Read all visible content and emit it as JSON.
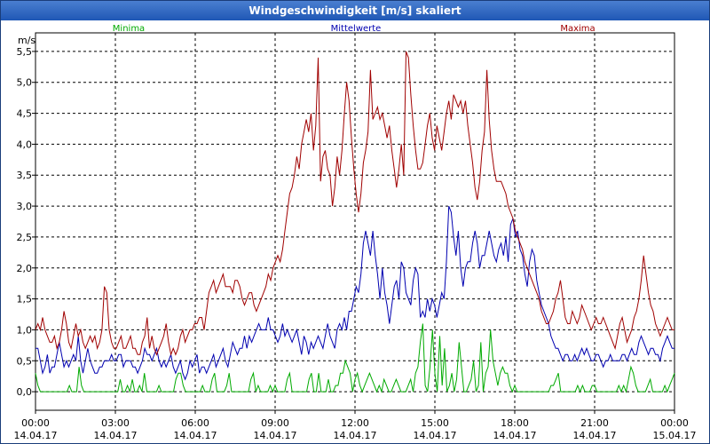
{
  "window": {
    "title": "Windgeschwindigkeit [m/s] skaliert"
  },
  "colors": {
    "min": "#00aa00",
    "mean": "#0000b0",
    "max": "#a00000",
    "grid": "#000000",
    "title_bg": "#2b63c0"
  },
  "chart_data": {
    "type": "line",
    "title": "Windgeschwindigkeit [m/s] skaliert",
    "ylabel": "m/s",
    "xlabel": "",
    "ylim": [
      -0.3,
      5.8
    ],
    "yticks": [
      0.0,
      0.5,
      1.0,
      1.5,
      2.0,
      2.5,
      3.0,
      3.5,
      4.0,
      4.5,
      5.0,
      5.5
    ],
    "ytick_labels": [
      "0,0",
      "0,5",
      "1,0",
      "1,5",
      "2,0",
      "2,5",
      "3,0",
      "3,5",
      "4,0",
      "4,5",
      "5,0",
      "5,5"
    ],
    "xlim_hours": [
      0,
      24
    ],
    "xticks": [
      {
        "time": "00:00",
        "date": "14.04.17"
      },
      {
        "time": "03:00",
        "date": "14.04.17"
      },
      {
        "time": "06:00",
        "date": "14.04.17"
      },
      {
        "time": "09:00",
        "date": "14.04.17"
      },
      {
        "time": "12:00",
        "date": "14.04.17"
      },
      {
        "time": "15:00",
        "date": "14.04.17"
      },
      {
        "time": "18:00",
        "date": "14.04.17"
      },
      {
        "time": "21:00",
        "date": "14.04.17"
      },
      {
        "time": "00:00",
        "date": "15.04.17"
      }
    ],
    "grid": true,
    "series": [
      {
        "name": "Minima",
        "color": "#00aa00",
        "values": [
          0.3,
          0.1,
          0,
          0,
          0,
          0,
          0,
          0,
          0,
          0,
          0,
          0,
          0,
          0,
          0.1,
          0,
          0,
          0,
          0.4,
          0.1,
          0,
          0,
          0,
          0,
          0,
          0,
          0,
          0,
          0,
          0,
          0,
          0,
          0,
          0,
          0,
          0.2,
          0,
          0,
          0.1,
          0,
          0.2,
          0,
          0,
          0.1,
          0,
          0.3,
          0,
          0,
          0,
          0,
          0,
          0.1,
          0,
          0,
          0,
          0,
          0,
          0,
          0.2,
          0.3,
          0.3,
          0.1,
          0,
          0,
          0,
          0,
          0,
          0,
          0,
          0.1,
          0,
          0,
          0,
          0.2,
          0.3,
          0,
          0,
          0,
          0,
          0.1,
          0.3,
          0,
          0,
          0,
          0,
          0,
          0,
          0,
          0,
          0.2,
          0.3,
          0,
          0.1,
          0,
          0,
          0,
          0,
          0.1,
          0,
          0.1,
          0,
          0,
          0,
          0,
          0.2,
          0.3,
          0,
          0,
          0,
          0,
          0,
          0,
          0,
          0.2,
          0.3,
          0,
          0,
          0.3,
          0,
          0,
          0,
          0.2,
          0,
          0,
          0.1,
          0.1,
          0.3,
          0.3,
          0.5,
          0.4,
          0.3,
          0,
          0.2,
          0.3,
          0.1,
          0,
          0.1,
          0.2,
          0.3,
          0.2,
          0.1,
          0,
          0.1,
          0,
          0.2,
          0.1,
          0,
          0,
          0.1,
          0.2,
          0.1,
          0,
          0,
          0,
          0.1,
          0.2,
          0,
          0.3,
          0.4,
          0.8,
          1.1,
          0.1,
          0,
          0.4,
          1.0,
          0.3,
          0,
          0.9,
          0.1,
          0.7,
          0,
          0.1,
          0.3,
          0,
          0.2,
          0.8,
          0.4,
          0,
          0,
          0.1,
          0.2,
          0.5,
          0,
          0.1,
          0.8,
          0,
          0.3,
          0.4,
          1.0,
          0.5,
          0.3,
          0.1,
          0.3,
          0.4,
          0.3,
          0.3,
          0.1,
          0,
          0.1,
          0,
          0,
          0,
          0,
          0,
          0,
          0,
          0,
          0,
          0,
          0,
          0,
          0,
          0,
          0.1,
          0.1,
          0.2,
          0.3,
          0,
          0,
          0,
          0,
          0,
          0,
          0,
          0.1,
          0,
          0.1,
          0,
          0,
          0,
          0.1,
          0.1,
          0,
          0,
          0,
          0,
          0,
          0,
          0,
          0,
          0,
          0.1,
          0,
          0.1,
          0,
          0.2,
          0.4,
          0.3,
          0.1,
          0,
          0,
          0,
          0,
          0.1,
          0.2,
          0,
          0,
          0,
          0,
          0,
          0.1,
          0,
          0.1,
          0.2,
          0.3
        ]
      },
      {
        "name": "Mittelwerte",
        "color": "#0000b0",
        "values": [
          0.7,
          0.7,
          0.5,
          0.3,
          0.4,
          0.6,
          0.3,
          0.4,
          0.4,
          0.6,
          0.8,
          0.6,
          0.4,
          0.5,
          0.4,
          0.5,
          0.6,
          0.5,
          0.9,
          0.5,
          0.3,
          0.5,
          0.7,
          0.5,
          0.4,
          0.3,
          0.3,
          0.4,
          0.4,
          0.5,
          0.5,
          0.5,
          0.6,
          0.5,
          0.5,
          0.6,
          0.6,
          0.4,
          0.5,
          0.5,
          0.5,
          0.4,
          0.4,
          0.3,
          0.4,
          0.5,
          0.7,
          0.6,
          0.6,
          0.5,
          0.6,
          0.7,
          0.5,
          0.4,
          0.5,
          0.4,
          0.5,
          0.6,
          0.4,
          0.3,
          0.4,
          0.5,
          0.3,
          0.2,
          0.3,
          0.5,
          0.4,
          0.5,
          0.6,
          0.3,
          0.4,
          0.4,
          0.3,
          0.4,
          0.5,
          0.6,
          0.4,
          0.5,
          0.6,
          0.7,
          0.5,
          0.4,
          0.6,
          0.8,
          0.7,
          0.6,
          0.7,
          0.7,
          0.9,
          0.7,
          0.9,
          0.8,
          0.9,
          1.0,
          1.1,
          1.0,
          1.0,
          1.0,
          1.2,
          1.0,
          1.0,
          0.9,
          0.8,
          0.9,
          1.1,
          0.9,
          1.0,
          0.9,
          0.8,
          0.9,
          1.0,
          0.8,
          0.6,
          0.9,
          0.8,
          0.6,
          0.8,
          0.7,
          0.8,
          0.9,
          0.8,
          0.7,
          0.9,
          1.1,
          0.9,
          0.8,
          0.7,
          1.0,
          1.1,
          1.0,
          1.2,
          1.0,
          1.3,
          1.3,
          1.5,
          1.7,
          1.6,
          1.9,
          2.4,
          2.6,
          2.4,
          2.2,
          2.6,
          2.2,
          1.9,
          1.5,
          2.0,
          1.6,
          1.4,
          1.1,
          1.4,
          1.7,
          1.8,
          1.5,
          2.1,
          2.0,
          1.6,
          1.5,
          1.4,
          1.8,
          2.0,
          1.9,
          1.2,
          1.3,
          1.2,
          1.5,
          1.3,
          1.5,
          1.4,
          1.2,
          1.4,
          1.6,
          1.5,
          2.1,
          3.0,
          2.9,
          2.5,
          2.2,
          2.6,
          2.0,
          1.7,
          2.0,
          2.1,
          2.1,
          2.4,
          2.6,
          2.4,
          2.0,
          2.2,
          2.2,
          2.4,
          2.6,
          2.4,
          2.2,
          2.1,
          2.3,
          2.4,
          2.2,
          2.5,
          2.1,
          2.7,
          2.8,
          2.5,
          2.6,
          2.3,
          2.2,
          1.9,
          1.7,
          2.1,
          2.3,
          2.2,
          1.8,
          1.6,
          1.4,
          1.3,
          1.2,
          1.1,
          0.9,
          0.8,
          0.7,
          0.7,
          0.6,
          0.5,
          0.6,
          0.6,
          0.5,
          0.5,
          0.6,
          0.5,
          0.6,
          0.7,
          0.6,
          0.7,
          0.6,
          0.5,
          0.5,
          0.6,
          0.6,
          0.5,
          0.4,
          0.5,
          0.5,
          0.6,
          0.5,
          0.5,
          0.5,
          0.5,
          0.6,
          0.6,
          0.5,
          0.6,
          0.7,
          0.6,
          0.6,
          0.8,
          0.9,
          0.8,
          0.7,
          0.6,
          0.7,
          0.7,
          0.6,
          0.6,
          0.5,
          0.7,
          0.8,
          0.9,
          0.8,
          0.7,
          0.7
        ]
      },
      {
        "name": "Maxima",
        "color": "#a00000",
        "values": [
          1.0,
          1.1,
          1.0,
          1.2,
          1.0,
          0.9,
          0.8,
          0.8,
          0.9,
          0.7,
          0.8,
          1.0,
          1.3,
          1.1,
          0.8,
          0.7,
          0.9,
          1.1,
          0.9,
          1.0,
          0.8,
          0.7,
          0.8,
          0.9,
          0.8,
          0.9,
          0.7,
          0.8,
          1.0,
          1.7,
          1.6,
          1.0,
          0.8,
          0.7,
          0.7,
          0.8,
          0.9,
          0.7,
          0.7,
          0.8,
          0.9,
          0.7,
          0.7,
          0.6,
          0.6,
          0.8,
          0.9,
          1.2,
          0.7,
          0.9,
          0.7,
          0.6,
          0.7,
          0.8,
          0.9,
          1.1,
          0.8,
          0.6,
          0.7,
          0.6,
          0.7,
          0.9,
          1.0,
          0.8,
          0.9,
          1.0,
          1.0,
          1.1,
          1.1,
          1.2,
          1.2,
          1.0,
          1.3,
          1.6,
          1.7,
          1.8,
          1.6,
          1.7,
          1.8,
          1.9,
          1.7,
          1.7,
          1.7,
          1.6,
          1.8,
          1.8,
          1.7,
          1.5,
          1.4,
          1.5,
          1.6,
          1.6,
          1.4,
          1.3,
          1.4,
          1.5,
          1.6,
          1.7,
          1.9,
          1.8,
          2.0,
          2.1,
          2.2,
          2.1,
          2.3,
          2.6,
          2.9,
          3.2,
          3.3,
          3.5,
          3.8,
          3.6,
          4.0,
          4.2,
          4.4,
          4.2,
          4.5,
          3.9,
          4.3,
          5.4,
          3.4,
          3.8,
          3.9,
          3.6,
          3.5,
          3.0,
          3.3,
          3.8,
          3.5,
          3.9,
          4.5,
          5.0,
          4.7,
          4.1,
          3.6,
          3.2,
          2.9,
          3.2,
          3.7,
          3.9,
          4.2,
          5.2,
          4.4,
          4.5,
          4.6,
          4.4,
          4.5,
          4.3,
          4.1,
          4.3,
          3.9,
          3.6,
          3.3,
          3.6,
          4.0,
          3.5,
          5.5,
          5.4,
          4.8,
          4.3,
          3.9,
          3.6,
          3.6,
          3.7,
          4.0,
          4.3,
          4.5,
          4.1,
          3.9,
          4.3,
          4.1,
          3.9,
          4.2,
          4.5,
          4.7,
          4.4,
          4.8,
          4.7,
          4.6,
          4.7,
          4.5,
          4.7,
          4.3,
          4.0,
          3.7,
          3.3,
          3.1,
          3.4,
          3.9,
          4.2,
          5.2,
          4.4,
          3.9,
          3.6,
          3.4,
          3.4,
          3.4,
          3.3,
          3.2,
          3.0,
          2.9,
          2.8,
          2.6,
          2.5,
          2.4,
          2.3,
          2.1,
          2.0,
          1.9,
          1.8,
          1.7,
          1.6,
          1.5,
          1.3,
          1.2,
          1.1,
          1.1,
          1.2,
          1.3,
          1.5,
          1.6,
          1.8,
          1.5,
          1.2,
          1.1,
          1.1,
          1.3,
          1.2,
          1.1,
          1.2,
          1.4,
          1.3,
          1.2,
          1.1,
          1.0,
          1.1,
          1.2,
          1.1,
          1.1,
          1.2,
          1.1,
          1.0,
          0.9,
          0.8,
          0.7,
          0.9,
          1.1,
          1.2,
          1.0,
          0.8,
          0.9,
          1.0,
          1.2,
          1.3,
          1.5,
          1.8,
          2.2,
          1.9,
          1.6,
          1.4,
          1.3,
          1.1,
          1.0,
          0.9,
          1.0,
          1.1,
          1.2,
          1.1,
          1.0,
          1.0
        ]
      }
    ]
  }
}
